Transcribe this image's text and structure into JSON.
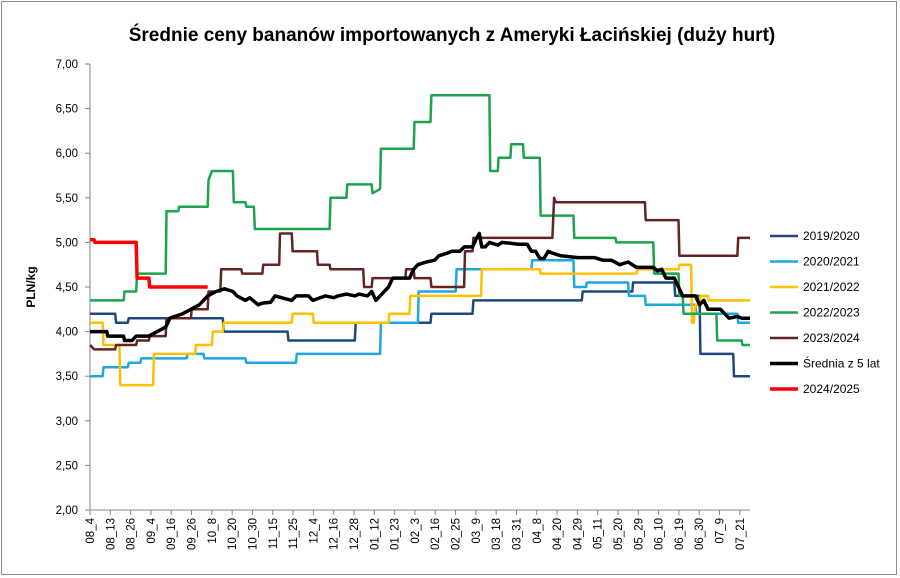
{
  "chart_data": {
    "type": "line",
    "title": "Średnie ceny bananów importowanych z Ameryki Łacińskiej (duży hurt)",
    "ylabel": "PLN/kg",
    "ylim": [
      2.0,
      7.0
    ],
    "yticks": [
      "2,00",
      "2,50",
      "3,00",
      "3,50",
      "4,00",
      "4,50",
      "5,00",
      "5,50",
      "6,00",
      "6,50",
      "7,00"
    ],
    "grid": false,
    "legend_position": "right",
    "x": [
      "08_4",
      "08_13",
      "08_26",
      "09_4",
      "09_16",
      "09_26",
      "10_8",
      "10_20",
      "10_30",
      "11_15",
      "11_25",
      "12_4",
      "12_16",
      "12_28",
      "01_12",
      "01_23",
      "02_3",
      "02_16",
      "02_25",
      "03_9",
      "03_18",
      "03_31",
      "04_8",
      "04_20",
      "04_29",
      "05_11",
      "05_20",
      "05_29",
      "06_10",
      "06_19",
      "06_30",
      "07_9",
      "07_21"
    ],
    "series": [
      {
        "name": "2019/2020",
        "color": "#1f497d",
        "width": 2.5,
        "points": [
          [
            0,
            4.2
          ],
          [
            3,
            4.2
          ],
          [
            3.1,
            4.1
          ],
          [
            4.5,
            4.1
          ],
          [
            4.6,
            4.15
          ],
          [
            15.8,
            4.15
          ],
          [
            15.9,
            4.0
          ],
          [
            23.5,
            4.0
          ],
          [
            23.6,
            3.9
          ],
          [
            31.5,
            3.9
          ],
          [
            31.6,
            4.1
          ],
          [
            40.5,
            4.1
          ],
          [
            40.6,
            4.2
          ],
          [
            45.5,
            4.2
          ],
          [
            45.6,
            4.35
          ],
          [
            58.5,
            4.35
          ],
          [
            58.6,
            4.45
          ],
          [
            64.5,
            4.45
          ],
          [
            64.6,
            4.55
          ],
          [
            69.5,
            4.55
          ],
          [
            69.6,
            4.4
          ],
          [
            72.5,
            4.4
          ],
          [
            72.6,
            3.75
          ],
          [
            76.5,
            3.75
          ],
          [
            76.6,
            3.5
          ],
          [
            78.5,
            3.5
          ]
        ]
      },
      {
        "name": "2020/2021",
        "color": "#1da8e0",
        "width": 2.5,
        "points": [
          [
            0,
            3.5
          ],
          [
            1.5,
            3.5
          ],
          [
            1.6,
            3.6
          ],
          [
            4.5,
            3.6
          ],
          [
            4.6,
            3.65
          ],
          [
            6,
            3.65
          ],
          [
            6.1,
            3.7
          ],
          [
            11.5,
            3.7
          ],
          [
            11.6,
            3.75
          ],
          [
            13.5,
            3.75
          ],
          [
            13.6,
            3.7
          ],
          [
            18.5,
            3.7
          ],
          [
            18.6,
            3.65
          ],
          [
            24.5,
            3.65
          ],
          [
            24.6,
            3.75
          ],
          [
            34.5,
            3.75
          ],
          [
            34.6,
            4.1
          ],
          [
            39,
            4.1
          ],
          [
            39.1,
            4.45
          ],
          [
            43.5,
            4.45
          ],
          [
            43.6,
            4.7
          ],
          [
            52.5,
            4.7
          ],
          [
            52.6,
            4.8
          ],
          [
            57.5,
            4.8
          ],
          [
            57.6,
            4.5
          ],
          [
            59,
            4.5
          ],
          [
            59.1,
            4.55
          ],
          [
            64,
            4.55
          ],
          [
            64.1,
            4.4
          ],
          [
            66,
            4.4
          ],
          [
            66.1,
            4.3
          ],
          [
            72,
            4.3
          ],
          [
            72.1,
            4.2
          ],
          [
            77,
            4.2
          ],
          [
            77.1,
            4.1
          ],
          [
            78.5,
            4.1
          ]
        ]
      },
      {
        "name": "2021/2022",
        "color": "#ffc000",
        "width": 2.5,
        "points": [
          [
            0,
            4.1
          ],
          [
            1.5,
            4.1
          ],
          [
            1.6,
            3.85
          ],
          [
            3.5,
            3.85
          ],
          [
            3.6,
            3.4
          ],
          [
            7.5,
            3.4
          ],
          [
            7.6,
            3.75
          ],
          [
            12.5,
            3.75
          ],
          [
            12.6,
            3.85
          ],
          [
            14.5,
            3.85
          ],
          [
            14.6,
            4.0
          ],
          [
            15.8,
            4.0
          ],
          [
            15.9,
            4.1
          ],
          [
            24,
            4.1
          ],
          [
            24.1,
            4.2
          ],
          [
            26.5,
            4.2
          ],
          [
            26.6,
            4.1
          ],
          [
            35.5,
            4.1
          ],
          [
            35.6,
            4.2
          ],
          [
            38,
            4.2
          ],
          [
            38.1,
            4.4
          ],
          [
            46.5,
            4.4
          ],
          [
            46.6,
            4.7
          ],
          [
            53.5,
            4.7
          ],
          [
            53.6,
            4.65
          ],
          [
            65,
            4.65
          ],
          [
            65.1,
            4.7
          ],
          [
            70,
            4.7
          ],
          [
            70.1,
            4.75
          ],
          [
            71.5,
            4.75
          ],
          [
            71.6,
            4.1
          ],
          [
            71.8,
            4.1
          ],
          [
            72,
            4.3
          ],
          [
            72.5,
            4.3
          ],
          [
            72.6,
            4.4
          ],
          [
            73.5,
            4.4
          ],
          [
            73.6,
            4.35
          ],
          [
            78.5,
            4.35
          ]
        ]
      },
      {
        "name": "2022/2023",
        "color": "#1ea34e",
        "width": 2.5,
        "points": [
          [
            0,
            4.35
          ],
          [
            4,
            4.35
          ],
          [
            4.1,
            4.45
          ],
          [
            5.5,
            4.45
          ],
          [
            5.6,
            4.65
          ],
          [
            9,
            4.65
          ],
          [
            9.1,
            5.35
          ],
          [
            10.5,
            5.35
          ],
          [
            10.6,
            5.4
          ],
          [
            14,
            5.4
          ],
          [
            14.1,
            5.7
          ],
          [
            14.5,
            5.8
          ],
          [
            17,
            5.8
          ],
          [
            17.1,
            5.45
          ],
          [
            18.5,
            5.45
          ],
          [
            18.6,
            5.4
          ],
          [
            19.5,
            5.4
          ],
          [
            19.6,
            5.15
          ],
          [
            28.5,
            5.15
          ],
          [
            28.6,
            5.5
          ],
          [
            30.5,
            5.5
          ],
          [
            30.6,
            5.65
          ],
          [
            33.5,
            5.65
          ],
          [
            33.6,
            5.55
          ],
          [
            34.5,
            5.6
          ],
          [
            34.6,
            6.05
          ],
          [
            38.5,
            6.05
          ],
          [
            38.6,
            6.35
          ],
          [
            40.5,
            6.35
          ],
          [
            40.6,
            6.65
          ],
          [
            47.5,
            6.65
          ],
          [
            47.6,
            5.8
          ],
          [
            48.5,
            5.8
          ],
          [
            48.6,
            5.95
          ],
          [
            50,
            5.95
          ],
          [
            50.1,
            6.1
          ],
          [
            51.5,
            6.1
          ],
          [
            51.6,
            5.95
          ],
          [
            53.5,
            5.95
          ],
          [
            53.6,
            5.3
          ],
          [
            57.5,
            5.3
          ],
          [
            57.6,
            5.05
          ],
          [
            62.5,
            5.05
          ],
          [
            62.6,
            5.0
          ],
          [
            67,
            5.0
          ],
          [
            67.1,
            4.65
          ],
          [
            70,
            4.65
          ],
          [
            70.1,
            4.4
          ],
          [
            70.5,
            4.4
          ],
          [
            70.6,
            4.2
          ],
          [
            74.5,
            4.2
          ],
          [
            74.6,
            3.9
          ],
          [
            77.5,
            3.9
          ],
          [
            77.6,
            3.85
          ],
          [
            78.5,
            3.85
          ]
        ]
      },
      {
        "name": "2023/2024",
        "color": "#632523",
        "width": 2.5,
        "points": [
          [
            0,
            3.85
          ],
          [
            0.5,
            3.8
          ],
          [
            3,
            3.8
          ],
          [
            3.1,
            3.85
          ],
          [
            5.5,
            3.85
          ],
          [
            5.6,
            3.9
          ],
          [
            7,
            3.9
          ],
          [
            7.1,
            3.95
          ],
          [
            9,
            3.95
          ],
          [
            9.1,
            4.15
          ],
          [
            12,
            4.15
          ],
          [
            12.1,
            4.25
          ],
          [
            14,
            4.25
          ],
          [
            14.1,
            4.45
          ],
          [
            15.5,
            4.45
          ],
          [
            15.6,
            4.7
          ],
          [
            18,
            4.7
          ],
          [
            18.1,
            4.65
          ],
          [
            20.5,
            4.65
          ],
          [
            20.6,
            4.75
          ],
          [
            22.5,
            4.75
          ],
          [
            22.6,
            5.1
          ],
          [
            24,
            5.1
          ],
          [
            24.1,
            4.9
          ],
          [
            27,
            4.9
          ],
          [
            27.1,
            4.75
          ],
          [
            28.5,
            4.75
          ],
          [
            28.6,
            4.7
          ],
          [
            32.5,
            4.7
          ],
          [
            32.6,
            4.5
          ],
          [
            33.5,
            4.5
          ],
          [
            33.6,
            4.6
          ],
          [
            37.5,
            4.6
          ],
          [
            37.6,
            4.7
          ],
          [
            38.5,
            4.7
          ],
          [
            38.6,
            4.6
          ],
          [
            40.5,
            4.6
          ],
          [
            40.6,
            4.5
          ],
          [
            44.5,
            4.5
          ],
          [
            44.6,
            4.9
          ],
          [
            45.5,
            4.9
          ],
          [
            45.6,
            5.05
          ],
          [
            55,
            5.05
          ],
          [
            55.2,
            5.5
          ],
          [
            55.4,
            5.45
          ],
          [
            66,
            5.45
          ],
          [
            66.1,
            5.25
          ],
          [
            70,
            5.25
          ],
          [
            70.1,
            4.85
          ],
          [
            77,
            4.85
          ],
          [
            77.1,
            5.05
          ],
          [
            78.5,
            5.05
          ]
        ]
      },
      {
        "name": "Średnia z 5 lat",
        "color": "#000000",
        "width": 3.5,
        "points": [
          [
            0,
            4.0
          ],
          [
            2,
            4.0
          ],
          [
            2.1,
            3.95
          ],
          [
            4,
            3.95
          ],
          [
            4.1,
            3.9
          ],
          [
            5,
            3.9
          ],
          [
            5.5,
            3.95
          ],
          [
            7,
            3.95
          ],
          [
            8,
            4.0
          ],
          [
            9,
            4.05
          ],
          [
            9.5,
            4.15
          ],
          [
            11,
            4.2
          ],
          [
            12,
            4.25
          ],
          [
            13,
            4.3
          ],
          [
            14,
            4.4
          ],
          [
            15,
            4.45
          ],
          [
            16,
            4.48
          ],
          [
            17,
            4.45
          ],
          [
            17.5,
            4.4
          ],
          [
            18.5,
            4.35
          ],
          [
            19,
            4.38
          ],
          [
            20,
            4.3
          ],
          [
            20.5,
            4.32
          ],
          [
            21.5,
            4.33
          ],
          [
            22,
            4.4
          ],
          [
            24,
            4.35
          ],
          [
            24.5,
            4.4
          ],
          [
            26,
            4.4
          ],
          [
            26.5,
            4.35
          ],
          [
            28,
            4.4
          ],
          [
            29,
            4.38
          ],
          [
            29.5,
            4.4
          ],
          [
            30.5,
            4.42
          ],
          [
            31.5,
            4.4
          ],
          [
            32,
            4.42
          ],
          [
            33,
            4.4
          ],
          [
            33.5,
            4.45
          ],
          [
            34,
            4.35
          ],
          [
            34.5,
            4.4
          ],
          [
            35.5,
            4.5
          ],
          [
            36,
            4.6
          ],
          [
            37,
            4.6
          ],
          [
            38,
            4.6
          ],
          [
            38.5,
            4.7
          ],
          [
            39,
            4.75
          ],
          [
            40,
            4.78
          ],
          [
            41,
            4.8
          ],
          [
            41.5,
            4.85
          ],
          [
            42.5,
            4.88
          ],
          [
            43,
            4.9
          ],
          [
            44,
            4.9
          ],
          [
            44.5,
            4.95
          ],
          [
            45.5,
            4.95
          ],
          [
            46,
            5.05
          ],
          [
            46.3,
            5.1
          ],
          [
            46.6,
            4.95
          ],
          [
            47,
            4.95
          ],
          [
            47.5,
            5.0
          ],
          [
            48.5,
            4.97
          ],
          [
            49,
            5.0
          ],
          [
            51,
            4.98
          ],
          [
            52,
            4.98
          ],
          [
            52.5,
            4.9
          ],
          [
            53,
            4.9
          ],
          [
            53.5,
            4.82
          ],
          [
            54,
            4.82
          ],
          [
            54.5,
            4.9
          ],
          [
            55,
            4.88
          ],
          [
            56,
            4.85
          ],
          [
            58,
            4.83
          ],
          [
            60,
            4.83
          ],
          [
            61,
            4.8
          ],
          [
            62,
            4.8
          ],
          [
            63,
            4.75
          ],
          [
            64,
            4.78
          ],
          [
            65,
            4.72
          ],
          [
            67,
            4.72
          ],
          [
            67.5,
            4.68
          ],
          [
            68,
            4.7
          ],
          [
            68.5,
            4.6
          ],
          [
            69.5,
            4.6
          ],
          [
            70,
            4.5
          ],
          [
            70.5,
            4.4
          ],
          [
            72,
            4.4
          ],
          [
            72.5,
            4.3
          ],
          [
            73,
            4.35
          ],
          [
            73.5,
            4.25
          ],
          [
            75,
            4.25
          ],
          [
            75.5,
            4.2
          ],
          [
            76,
            4.15
          ],
          [
            77,
            4.17
          ],
          [
            77.5,
            4.15
          ],
          [
            78.5,
            4.15
          ]
        ]
      },
      {
        "name": "2024/2025",
        "color": "#ff0000",
        "width": 3.5,
        "points": [
          [
            0,
            5.03
          ],
          [
            0.5,
            5.03
          ],
          [
            0.6,
            5.0
          ],
          [
            5.5,
            5.0
          ],
          [
            5.6,
            4.6
          ],
          [
            7,
            4.6
          ],
          [
            7.1,
            4.5
          ],
          [
            14,
            4.5
          ]
        ]
      }
    ]
  }
}
